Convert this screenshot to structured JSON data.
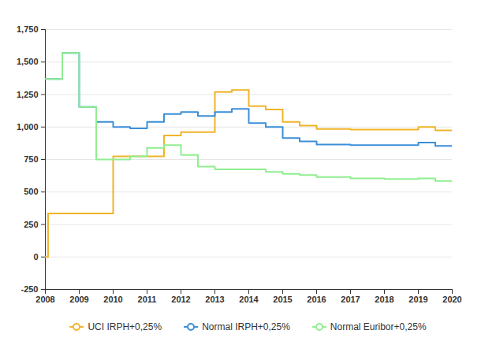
{
  "chart_data": {
    "type": "line",
    "line_style": "step",
    "x": [
      2008,
      2008.08,
      2008.5,
      2009,
      2009.5,
      2010,
      2010.5,
      2011,
      2011.5,
      2012,
      2012.5,
      2013,
      2013.5,
      2014,
      2014.5,
      2015,
      2015.5,
      2016,
      2017,
      2018,
      2019,
      2019.5,
      2020
    ],
    "series": [
      {
        "name": "UCI IRPH+0,25%",
        "color": "#f0b429",
        "values": [
          0,
          335,
          335,
          335,
          335,
          775,
          775,
          775,
          935,
          960,
          960,
          1270,
          1285,
          1160,
          1135,
          1040,
          1010,
          985,
          980,
          980,
          1000,
          975,
          975
        ]
      },
      {
        "name": "Normal IRPH+0,25%",
        "color": "#3a8fd8",
        "values": [
          1370,
          1370,
          1570,
          1155,
          1040,
          1000,
          990,
          1040,
          1100,
          1115,
          1085,
          1115,
          1140,
          1030,
          1000,
          915,
          890,
          865,
          860,
          860,
          880,
          855,
          855
        ]
      },
      {
        "name": "Normal Euribor+0,25%",
        "color": "#90ee90",
        "values": [
          1370,
          1370,
          1570,
          1155,
          750,
          750,
          775,
          840,
          860,
          785,
          695,
          675,
          675,
          675,
          655,
          640,
          630,
          615,
          605,
          600,
          605,
          585,
          585
        ]
      }
    ],
    "xlim": [
      2008,
      2020
    ],
    "xticks": [
      2008,
      2009,
      2010,
      2011,
      2012,
      2013,
      2014,
      2015,
      2016,
      2017,
      2018,
      2019,
      2020
    ],
    "ylim": [
      -250,
      1750
    ],
    "yticks": [
      -250,
      0,
      250,
      500,
      750,
      {
        "value": 1000,
        "label": "1,000"
      },
      {
        "value": 1250,
        "label": "1,250"
      },
      {
        "value": 1500,
        "label": "1,500"
      },
      {
        "value": 1750,
        "label": "1,750"
      }
    ],
    "grid": true,
    "legend": "bottom"
  }
}
